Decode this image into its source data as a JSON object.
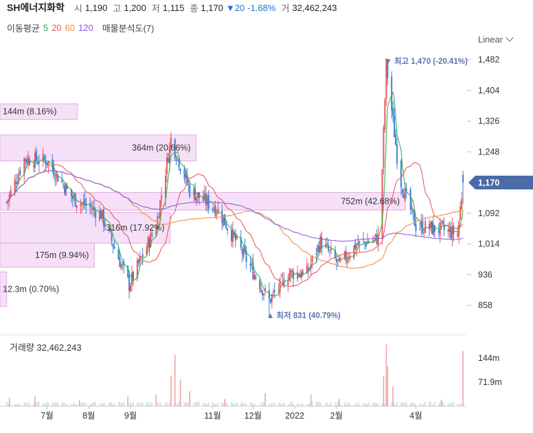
{
  "header": {
    "name": "SH에너지화학",
    "open_label": "시",
    "open": "1,190",
    "high_label": "고",
    "high": "1,200",
    "low_label": "저",
    "low": "1,115",
    "close_label": "종",
    "close": "1,170",
    "change": "▼20",
    "change_pct": "-1.68%",
    "volume_label": "거",
    "volume": "32,462,243"
  },
  "ma_legend": {
    "label": "이동평균",
    "periods": [
      {
        "text": "5",
        "color": "#2bb24c"
      },
      {
        "text": "20",
        "color": "#e8575b"
      },
      {
        "text": "60",
        "color": "#f08a3c"
      },
      {
        "text": "120",
        "color": "#8f5bd8"
      }
    ],
    "analysis": "매물분석도(7)"
  },
  "scale": {
    "label": "Linear"
  },
  "colors": {
    "up": "#e8575b",
    "down": "#3d7fd9",
    "ma5": "#2bb24c",
    "ma20": "#e8575b",
    "ma60": "#f08a3c",
    "ma120": "#8f5bd8",
    "profile_fill": "#f6ddf7",
    "profile_stroke": "#d8a6dc",
    "current_tag": "#4a6aa8"
  },
  "chart_data": [
    {
      "type": "candlestick",
      "title": "SH에너지화학",
      "ylim": [
        820,
        1520
      ],
      "y_ticks": [
        858,
        936,
        1014,
        1092,
        1170,
        1248,
        1326,
        1404,
        1482
      ],
      "y_tick_labels": [
        "858",
        "936",
        "1,014",
        "1,092",
        "1,248",
        "1,326",
        "1,404",
        "1,482"
      ],
      "x_tick_labels": [
        "7월",
        "8월",
        "9월",
        "11월",
        "12월",
        "2022",
        "2월",
        "4월"
      ],
      "current_price": "1,170",
      "annotations": {
        "high": "▼ 최고 1,470 (-20.41%)",
        "low": "▲ 최저 831 (40.79%)"
      },
      "volume_profile": [
        {
          "label": "144m (8.16%)",
          "low": 1330,
          "high": 1370
        },
        {
          "label": "364m (20.66%)",
          "low": 1225,
          "high": 1291
        },
        {
          "label": "752m (42.68%)",
          "low": 1100,
          "high": 1145
        },
        {
          "label": "316m (17.92%)",
          "low": 1016,
          "high": 1094
        },
        {
          "label": "175m (9.94%)",
          "low": 955,
          "high": 1016
        },
        {
          "label": "12.3m (0.70%)",
          "low": 855,
          "high": 943
        }
      ],
      "price_path": [
        {
          "x": "2021-06-01",
          "y": 1120
        },
        {
          "x": "2021-06-14",
          "y": 1230
        },
        {
          "x": "2021-07-01",
          "y": 1225
        },
        {
          "x": "2021-07-20",
          "y": 1130
        },
        {
          "x": "2021-08-10",
          "y": 1090
        },
        {
          "x": "2021-08-31",
          "y": 910
        },
        {
          "x": "2021-09-20",
          "y": 1060
        },
        {
          "x": "2021-10-01",
          "y": 1280
        },
        {
          "x": "2021-10-15",
          "y": 1150
        },
        {
          "x": "2021-11-05",
          "y": 1100
        },
        {
          "x": "2021-11-25",
          "y": 980
        },
        {
          "x": "2021-12-13",
          "y": 870
        },
        {
          "x": "2021-12-28",
          "y": 940
        },
        {
          "x": "2022-01-10",
          "y": 940
        },
        {
          "x": "2022-01-20",
          "y": 1020
        },
        {
          "x": "2022-02-03",
          "y": 960
        },
        {
          "x": "2022-02-15",
          "y": 1010
        },
        {
          "x": "2022-03-05",
          "y": 1030
        },
        {
          "x": "2022-03-10",
          "y": 1470
        },
        {
          "x": "2022-03-20",
          "y": 1180
        },
        {
          "x": "2022-04-01",
          "y": 1060
        },
        {
          "x": "2022-04-20",
          "y": 1050
        },
        {
          "x": "2022-05-02",
          "y": 1040
        },
        {
          "x": "2022-05-06",
          "y": 1170
        }
      ]
    },
    {
      "type": "bar",
      "title": "거래량 32,462,243",
      "y_tick_labels": [
        "144m",
        "71.9m"
      ],
      "y_ticks": [
        144,
        71.9
      ],
      "ylim": [
        0,
        200
      ],
      "unit": "m",
      "spikes": [
        {
          "x": "2021-06-03",
          "y": 25
        },
        {
          "x": "2021-06-22",
          "y": 30
        },
        {
          "x": "2021-07-25",
          "y": 18
        },
        {
          "x": "2021-08-30",
          "y": 30
        },
        {
          "x": "2021-09-20",
          "y": 35
        },
        {
          "x": "2021-10-01",
          "y": 90
        },
        {
          "x": "2021-10-04",
          "y": 155
        },
        {
          "x": "2021-10-08",
          "y": 80
        },
        {
          "x": "2021-10-15",
          "y": 45
        },
        {
          "x": "2021-11-10",
          "y": 22
        },
        {
          "x": "2021-12-10",
          "y": 40
        },
        {
          "x": "2022-01-13",
          "y": 35
        },
        {
          "x": "2022-02-03",
          "y": 22
        },
        {
          "x": "2022-03-08",
          "y": 90
        },
        {
          "x": "2022-03-10",
          "y": 185
        },
        {
          "x": "2022-03-11",
          "y": 120
        },
        {
          "x": "2022-03-15",
          "y": 60
        },
        {
          "x": "2022-04-20",
          "y": 20
        },
        {
          "x": "2022-05-06",
          "y": 165
        }
      ]
    }
  ]
}
